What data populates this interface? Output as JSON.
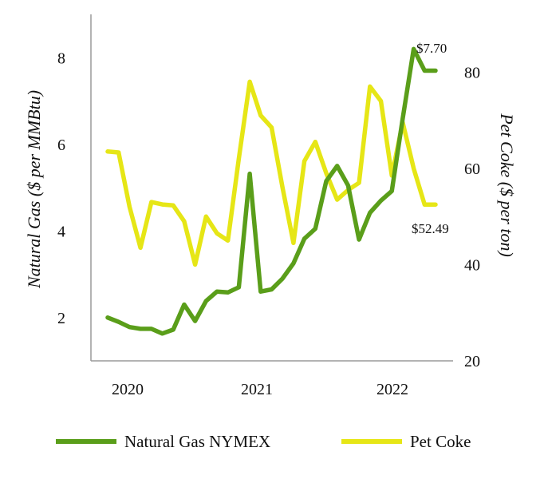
{
  "chart_data": {
    "type": "line",
    "title": "",
    "x_axis": {
      "label": "",
      "tick_labels": [
        "2020",
        "2021",
        "2022"
      ]
    },
    "y_left": {
      "label": "Natural Gas  ($ per MMBtu)",
      "range": [
        1,
        9
      ],
      "ticks": [
        "2",
        "4",
        "6",
        "8"
      ]
    },
    "y_right": {
      "label": "Pet Coke  ($ per ton)",
      "range": [
        20,
        92
      ],
      "ticks": [
        "20",
        "40",
        "60",
        "80"
      ]
    },
    "legend_position": "bottom",
    "series": [
      {
        "name": "Natural Gas NYMEX",
        "axis": "left",
        "color": "#5a9e1a",
        "values": [
          2.0,
          1.9,
          1.78,
          1.74,
          1.74,
          1.63,
          1.72,
          2.3,
          1.92,
          2.38,
          2.6,
          2.58,
          2.7,
          5.32,
          2.6,
          2.65,
          2.9,
          3.25,
          3.82,
          4.05,
          5.15,
          5.5,
          5.05,
          3.8,
          4.42,
          4.7,
          4.92,
          6.6,
          8.2,
          7.7,
          7.7
        ]
      },
      {
        "name": "Pet Coke",
        "axis": "right",
        "color": "#e6e616",
        "values": [
          63.5,
          63.3,
          52.0,
          43.5,
          53.0,
          52.5,
          52.3,
          49.0,
          40.0,
          50.0,
          46.5,
          45.0,
          62.0,
          78.0,
          71.0,
          68.5,
          56.0,
          44.5,
          61.5,
          65.5,
          59.0,
          53.5,
          55.5,
          57.0,
          77.0,
          74.0,
          58.5,
          69.5,
          60.0,
          52.49,
          52.49
        ]
      }
    ],
    "annotations": [
      {
        "text": "$7.70",
        "series": "Natural Gas NYMEX"
      },
      {
        "text": "$52.49",
        "series": "Pet Coke"
      }
    ]
  }
}
